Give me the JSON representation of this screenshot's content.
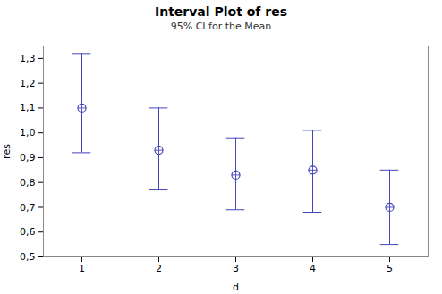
{
  "chart_data": {
    "type": "errorbar",
    "title": "Interval Plot of res",
    "subtitle": "95% CI for the Mean",
    "xlabel": "d",
    "ylabel": "res",
    "x": [
      1,
      2,
      3,
      4,
      5
    ],
    "values": [
      1.1,
      0.93,
      0.83,
      0.85,
      0.7
    ],
    "ci_lower": [
      0.92,
      0.77,
      0.69,
      0.68,
      0.55
    ],
    "ci_upper": [
      1.32,
      1.1,
      0.98,
      1.01,
      0.85
    ],
    "color": "#4444bb",
    "marker": "circle",
    "grid": false,
    "xlim": [
      0.5,
      5.5
    ],
    "xticks": [
      1,
      2,
      3,
      4,
      5
    ],
    "ylim": [
      0.5,
      1.35
    ],
    "yticks": [
      {
        "value": 0.5,
        "label": "0,5"
      },
      {
        "value": 0.6,
        "label": "0,6"
      },
      {
        "value": 0.7,
        "label": "0,7"
      },
      {
        "value": 0.8,
        "label": "0,8"
      },
      {
        "value": 0.9,
        "label": "0,9"
      },
      {
        "value": 1.0,
        "label": "1,0"
      },
      {
        "value": 1.1,
        "label": "1,1"
      },
      {
        "value": 1.2,
        "label": "1,2"
      },
      {
        "value": 1.3,
        "label": "1,3"
      }
    ]
  }
}
